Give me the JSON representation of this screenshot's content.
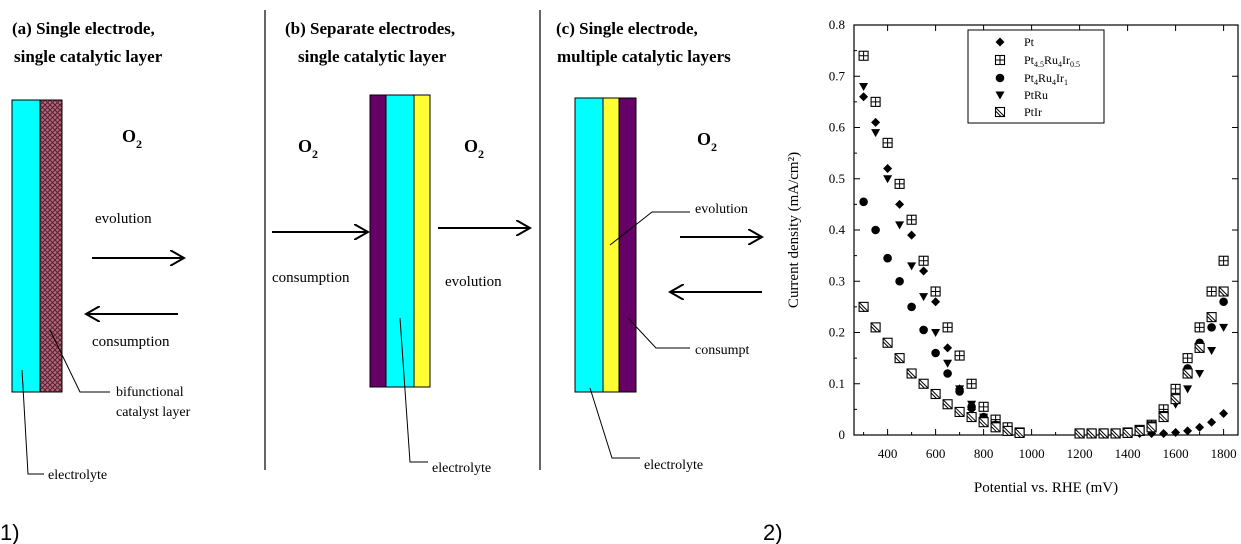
{
  "figure_labels": {
    "left": "1)",
    "right": "2)"
  },
  "colors": {
    "cyan": "#00ffff",
    "yellow": "#ffff33",
    "purple": "#660066",
    "catalyst": "#8b3a4f",
    "black": "#000000"
  },
  "panel_a": {
    "title_line1": "(a) Single electrode,",
    "title_line2": "single catalytic layer",
    "o2": "O",
    "o2_sub": "2",
    "evolution": "evolution",
    "consumption": "consumption",
    "catalyst_line1": "bifunctional",
    "catalyst_line2": "catalyst layer",
    "electrolyte": "electrolyte"
  },
  "panel_b": {
    "title_line1": "(b) Separate electrodes,",
    "title_line2": "single catalytic layer",
    "o2_left": "O",
    "o2_right": "O",
    "o2_sub": "2",
    "consumption": "consumption",
    "evolution": "evolution",
    "electrolyte": "electrolyte"
  },
  "panel_c": {
    "title_line1": "(c) Single electrode,",
    "title_line2": "multiple catalytic layers",
    "o2": "O",
    "o2_sub": "2",
    "evolution": "evolution",
    "consumption": "consumpt",
    "electrolyte": "electrolyte"
  },
  "chart_data": {
    "type": "scatter",
    "xlabel": "Potential vs. RHE (mV)",
    "ylabel": "Current density (mA/cm²)",
    "xlim": [
      260,
      1860
    ],
    "ylim": [
      0,
      0.8
    ],
    "xticks": [
      "400",
      "600",
      "800",
      "1000",
      "1200",
      "1400",
      "1600",
      "1800"
    ],
    "yticks": [
      "0",
      "0.1",
      "0.2",
      "0.3",
      "0.4",
      "0.5",
      "0.6",
      "0.7",
      "0.8"
    ],
    "legend_position": "top",
    "series": [
      {
        "name": "Pt",
        "marker": "diamond",
        "x": [
          300,
          350,
          400,
          450,
          500,
          550,
          600,
          650,
          700,
          750,
          800,
          850,
          900,
          1200,
          1250,
          1300,
          1350,
          1400,
          1450,
          1500,
          1550,
          1600,
          1650,
          1700,
          1750,
          1800
        ],
        "y": [
          0.66,
          0.61,
          0.52,
          0.45,
          0.39,
          0.32,
          0.26,
          0.17,
          0.09,
          0.05,
          0.03,
          0.015,
          0.01,
          0.003,
          0.003,
          0.003,
          0.003,
          0.003,
          0.003,
          0.003,
          0.003,
          0.005,
          0.008,
          0.015,
          0.025,
          0.042
        ]
      },
      {
        "name": "Pt4.5Ru4Ir0.5",
        "marker": "square-plus",
        "x": [
          300,
          350,
          400,
          450,
          500,
          550,
          600,
          650,
          700,
          750,
          800,
          850,
          900,
          950,
          1200,
          1250,
          1300,
          1350,
          1400,
          1450,
          1500,
          1550,
          1600,
          1650,
          1700,
          1750,
          1800
        ],
        "y": [
          0.74,
          0.65,
          0.57,
          0.49,
          0.42,
          0.34,
          0.28,
          0.21,
          0.155,
          0.1,
          0.055,
          0.03,
          0.015,
          0.005,
          0.003,
          0.003,
          0.003,
          0.003,
          0.005,
          0.01,
          0.02,
          0.05,
          0.09,
          0.15,
          0.21,
          0.28,
          0.34
        ]
      },
      {
        "name": "Pt4Ru4Ir1",
        "marker": "circle",
        "x": [
          300,
          350,
          400,
          450,
          500,
          550,
          600,
          650,
          700,
          750,
          800,
          850,
          900,
          1600,
          1650,
          1700,
          1750,
          1800
        ],
        "y": [
          0.455,
          0.4,
          0.345,
          0.3,
          0.25,
          0.205,
          0.16,
          0.12,
          0.085,
          0.055,
          0.035,
          0.02,
          0.01,
          0.07,
          0.13,
          0.18,
          0.21,
          0.26
        ]
      },
      {
        "name": "PtRu",
        "marker": "triangle-down",
        "x": [
          300,
          350,
          400,
          450,
          500,
          550,
          600,
          650,
          700,
          750,
          800,
          850,
          900,
          1500,
          1550,
          1600,
          1650,
          1700,
          1750,
          1800
        ],
        "y": [
          0.68,
          0.59,
          0.5,
          0.41,
          0.33,
          0.27,
          0.2,
          0.14,
          0.09,
          0.06,
          0.035,
          0.02,
          0.01,
          0.02,
          0.04,
          0.06,
          0.09,
          0.12,
          0.165,
          0.21
        ]
      },
      {
        "name": "PtIr",
        "marker": "square-slash",
        "x": [
          300,
          350,
          400,
          450,
          500,
          550,
          600,
          650,
          700,
          750,
          800,
          850,
          900,
          950,
          1200,
          1250,
          1300,
          1350,
          1400,
          1450,
          1500,
          1550,
          1600,
          1650,
          1700,
          1750,
          1800
        ],
        "y": [
          0.25,
          0.21,
          0.18,
          0.15,
          0.12,
          0.1,
          0.08,
          0.06,
          0.045,
          0.035,
          0.025,
          0.015,
          0.008,
          0.004,
          0.003,
          0.003,
          0.003,
          0.003,
          0.004,
          0.008,
          0.015,
          0.035,
          0.07,
          0.12,
          0.17,
          0.23,
          0.28
        ]
      }
    ]
  }
}
